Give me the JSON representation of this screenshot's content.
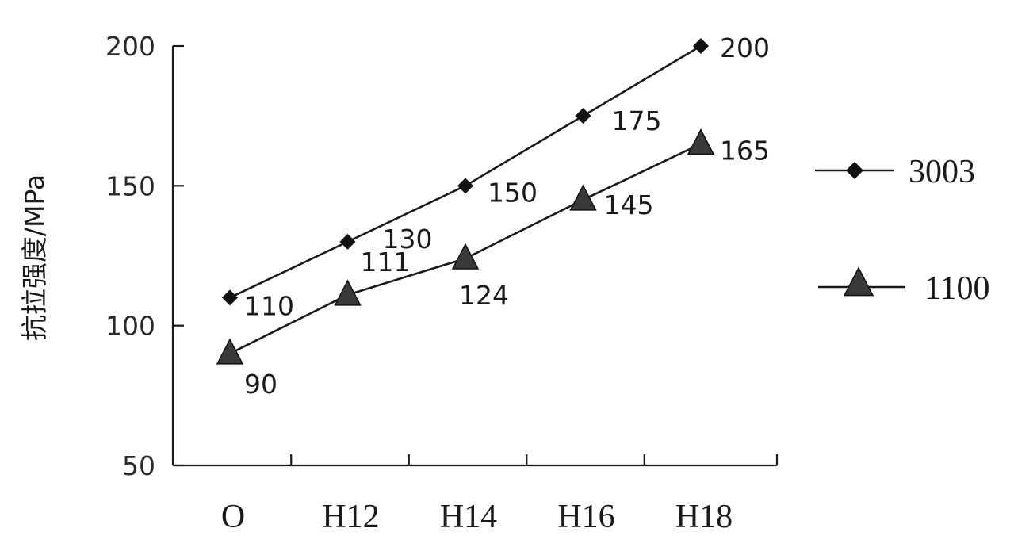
{
  "chart_data": {
    "type": "line",
    "title": "",
    "xlabel": "",
    "ylabel": "抗拉强度/MPa",
    "categories": [
      "O",
      "H12",
      "H14",
      "H16",
      "H18"
    ],
    "ylim": [
      50,
      200
    ],
    "yticks": [
      50,
      100,
      150,
      200
    ],
    "grid": false,
    "legend_position": "right",
    "series": [
      {
        "name": "3003",
        "marker": "diamond",
        "values": [
          110,
          130,
          150,
          175,
          200
        ],
        "labels": [
          "110",
          "130",
          "150",
          "175",
          "200"
        ]
      },
      {
        "name": "1100",
        "marker": "triangle",
        "values": [
          90,
          111,
          124,
          145,
          165
        ],
        "labels": [
          "90",
          "111",
          "124",
          "145",
          "165"
        ]
      }
    ]
  }
}
